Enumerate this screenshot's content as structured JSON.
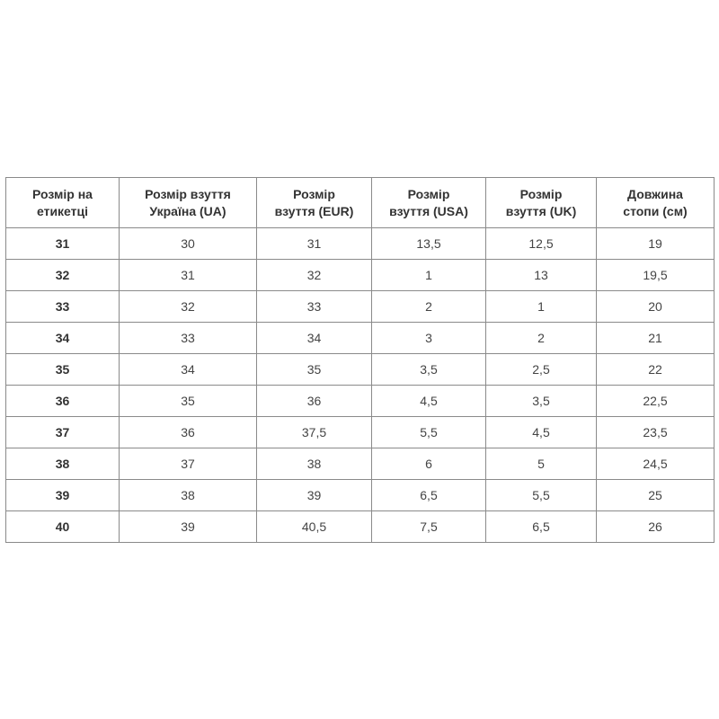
{
  "table": {
    "headers": [
      [
        "Розмір на",
        "етикетці"
      ],
      [
        "Розмір взуття",
        "Україна (UA)"
      ],
      [
        "Розмір",
        "взуття (EUR)"
      ],
      [
        "Розмір",
        "взуття (USA)"
      ],
      [
        "Розмір",
        "взуття (UK)"
      ],
      [
        "Довжина",
        "стопи (см)"
      ]
    ],
    "rows": [
      [
        "31",
        "30",
        "31",
        "13,5",
        "12,5",
        "19"
      ],
      [
        "32",
        "31",
        "32",
        "1",
        "13",
        "19,5"
      ],
      [
        "33",
        "32",
        "33",
        "2",
        "1",
        "20"
      ],
      [
        "34",
        "33",
        "34",
        "3",
        "2",
        "21"
      ],
      [
        "35",
        "34",
        "35",
        "3,5",
        "2,5",
        "22"
      ],
      [
        "36",
        "35",
        "36",
        "4,5",
        "3,5",
        "22,5"
      ],
      [
        "37",
        "36",
        "37,5",
        "5,5",
        "4,5",
        "23,5"
      ],
      [
        "38",
        "37",
        "38",
        "6",
        "5",
        "24,5"
      ],
      [
        "39",
        "38",
        "39",
        "6,5",
        "5,5",
        "25"
      ],
      [
        "40",
        "39",
        "40,5",
        "7,5",
        "6,5",
        "26"
      ]
    ]
  }
}
